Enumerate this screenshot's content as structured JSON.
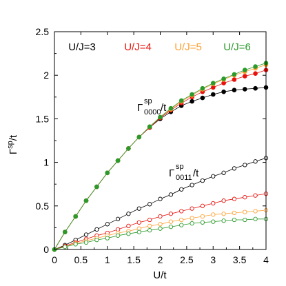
{
  "chart_data": {
    "type": "line",
    "title": "",
    "xlabel_main": "U/t",
    "ylabel_main": "Γ",
    "ylabel_sup": "sp",
    "ylabel_tail": "/t",
    "xlim": [
      0,
      4
    ],
    "ylim": [
      0,
      2.5
    ],
    "xticks": [
      "0",
      "0.5",
      "1",
      "1.5",
      "2",
      "2.5",
      "3",
      "3.5",
      "4"
    ],
    "yticks": [
      "0",
      "0.5",
      "1",
      "1.5",
      "2",
      "2.5"
    ],
    "grid": false,
    "legend_position": "top",
    "x": [
      0,
      0.2,
      0.4,
      0.6,
      0.8,
      1.0,
      1.2,
      1.4,
      1.6,
      1.8,
      2.0,
      2.2,
      2.4,
      2.6,
      2.8,
      3.0,
      3.2,
      3.4,
      3.6,
      3.8,
      4.0
    ],
    "series": [
      {
        "name": "U/J=3",
        "color": "#000000",
        "quantity": "0000",
        "values": [
          0,
          0.2,
          0.38,
          0.56,
          0.72,
          0.88,
          1.02,
          1.16,
          1.29,
          1.4,
          1.5,
          1.58,
          1.65,
          1.7,
          1.74,
          1.78,
          1.81,
          1.83,
          1.84,
          1.85,
          1.86
        ]
      },
      {
        "name": "U/J=4",
        "color": "#e8120c",
        "quantity": "0000",
        "values": [
          0,
          0.2,
          0.38,
          0.56,
          0.72,
          0.88,
          1.02,
          1.16,
          1.29,
          1.4,
          1.51,
          1.6,
          1.68,
          1.75,
          1.81,
          1.86,
          1.91,
          1.95,
          1.99,
          2.02,
          2.06
        ]
      },
      {
        "name": "U/J=5",
        "color": "#ffa033",
        "quantity": "0000",
        "values": [
          0,
          0.2,
          0.38,
          0.56,
          0.72,
          0.88,
          1.02,
          1.16,
          1.29,
          1.41,
          1.52,
          1.61,
          1.7,
          1.77,
          1.84,
          1.9,
          1.95,
          2.0,
          2.04,
          2.08,
          2.12
        ]
      },
      {
        "name": "U/J=6",
        "color": "#2a9a2a",
        "quantity": "0000",
        "values": [
          0,
          0.2,
          0.38,
          0.56,
          0.72,
          0.88,
          1.02,
          1.16,
          1.29,
          1.41,
          1.52,
          1.62,
          1.71,
          1.78,
          1.85,
          1.91,
          1.96,
          2.01,
          2.06,
          2.1,
          2.14
        ]
      },
      {
        "name": "U/J=3",
        "color": "#000000",
        "quantity": "0011",
        "values": [
          0,
          0.05,
          0.11,
          0.17,
          0.23,
          0.29,
          0.35,
          0.41,
          0.47,
          0.52,
          0.58,
          0.63,
          0.69,
          0.74,
          0.79,
          0.84,
          0.88,
          0.93,
          0.97,
          1.01,
          1.05
        ]
      },
      {
        "name": "U/J=4",
        "color": "#e8120c",
        "quantity": "0011",
        "values": [
          0,
          0.04,
          0.08,
          0.12,
          0.16,
          0.19,
          0.23,
          0.27,
          0.31,
          0.34,
          0.38,
          0.41,
          0.44,
          0.47,
          0.5,
          0.53,
          0.56,
          0.58,
          0.6,
          0.62,
          0.64
        ]
      },
      {
        "name": "U/J=5",
        "color": "#ffa033",
        "quantity": "0011",
        "values": [
          0,
          0.03,
          0.07,
          0.1,
          0.13,
          0.16,
          0.19,
          0.21,
          0.24,
          0.27,
          0.29,
          0.32,
          0.34,
          0.36,
          0.38,
          0.4,
          0.41,
          0.42,
          0.43,
          0.44,
          0.45
        ]
      },
      {
        "name": "U/J=6",
        "color": "#2a9a2a",
        "quantity": "0011",
        "values": [
          0,
          0.03,
          0.06,
          0.08,
          0.11,
          0.13,
          0.16,
          0.18,
          0.2,
          0.22,
          0.24,
          0.26,
          0.28,
          0.3,
          0.31,
          0.32,
          0.33,
          0.34,
          0.34,
          0.35,
          0.35
        ]
      }
    ],
    "legend": [
      {
        "label": "U/J=3",
        "color": "#000000"
      },
      {
        "label": "U/J=4",
        "color": "#e8120c"
      },
      {
        "label": "U/J=5",
        "color": "#ffa033"
      },
      {
        "label": "U/J=6",
        "color": "#2a9a2a"
      }
    ],
    "annotations": [
      {
        "id": "g0000",
        "main": "Γ",
        "sup": "sp",
        "sub": "0000",
        "tail": "/t"
      },
      {
        "id": "g0011",
        "main": "Γ",
        "sup": "sp",
        "sub": "0011",
        "tail": "/t"
      }
    ]
  }
}
